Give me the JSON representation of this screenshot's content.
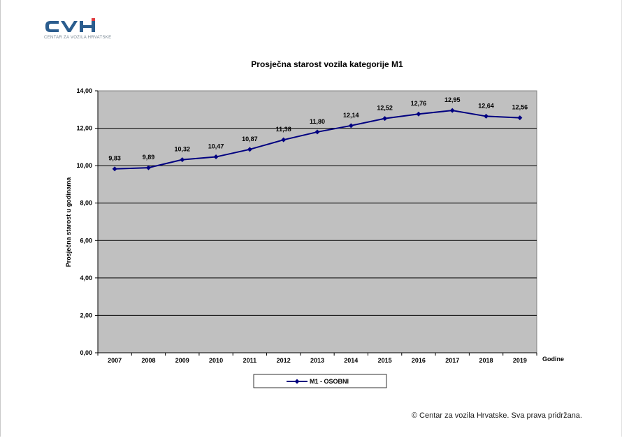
{
  "brand": {
    "logo_text": "CVH",
    "tagline": "CENTAR ZA VOZILA HRVATSKE",
    "colors": {
      "primary": "#2b5d8e",
      "accent": "#e03a3e"
    }
  },
  "chart_data": {
    "type": "line",
    "title": "Prosječna starost vozila kategorije M1",
    "xlabel": "Godine",
    "ylabel": "Prosječna starost u godinama",
    "categories": [
      "2007",
      "2008",
      "2009",
      "2010",
      "2011",
      "2012",
      "2013",
      "2014",
      "2015",
      "2016",
      "2017",
      "2018",
      "2019"
    ],
    "series": [
      {
        "name": "M1 - OSOBNI",
        "values": [
          9.83,
          9.89,
          10.32,
          10.47,
          10.87,
          11.38,
          11.8,
          12.14,
          12.52,
          12.76,
          12.95,
          12.64,
          12.56
        ],
        "color": "#000080"
      }
    ],
    "data_labels": [
      "9,83",
      "9,89",
      "10,32",
      "10,47",
      "10,87",
      "11,38",
      "11,80",
      "12,14",
      "12,52",
      "12,76",
      "12,95",
      "12,64",
      "12,56"
    ],
    "ylim": [
      0,
      14
    ],
    "yticks": [
      0,
      2,
      4,
      6,
      8,
      10,
      12,
      14
    ],
    "ytick_labels": [
      "0,00",
      "2,00",
      "4,00",
      "6,00",
      "8,00",
      "10,00",
      "12,00",
      "14,00"
    ],
    "grid": true,
    "plot_background": "#c0c0c0",
    "legend_position": "bottom"
  },
  "footer": {
    "copyright": "© Centar za vozila Hrvatske. Sva prava pridržana."
  }
}
